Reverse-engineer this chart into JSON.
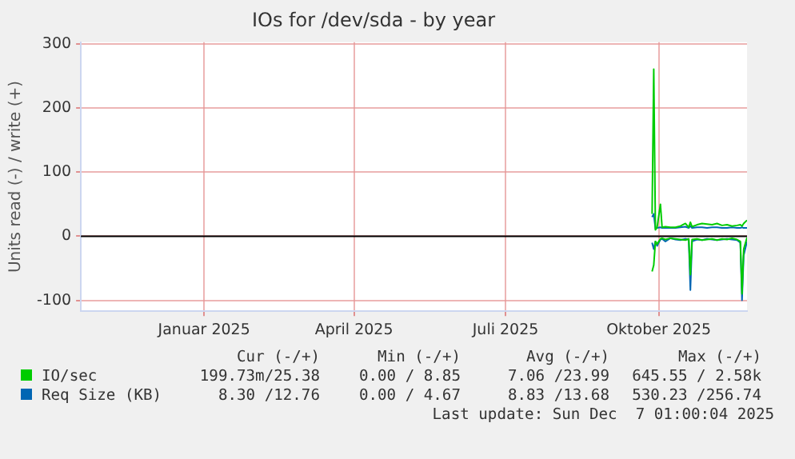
{
  "chart_data": {
    "type": "line",
    "title": "IOs for /dev/sda - by year",
    "ylabel": "Units read (-) / write (+)",
    "x": [
      "2025-10-11",
      "2025-10-12",
      "2025-10-13",
      "2025-10-14",
      "2025-10-16",
      "2025-10-17",
      "2025-10-19",
      "2025-10-22",
      "2025-10-25",
      "2025-10-28",
      "2025-10-31",
      "2025-11-02",
      "2025-11-03",
      "2025-11-04",
      "2025-11-07",
      "2025-11-10",
      "2025-11-13",
      "2025-11-16",
      "2025-11-19",
      "2025-11-22",
      "2025-11-25",
      "2025-11-28",
      "2025-12-01",
      "2025-12-03",
      "2025-12-04",
      "2025-12-05",
      "2025-12-07"
    ],
    "series": [
      {
        "name": "IO/sec",
        "color": "#00cc00",
        "values": [
          35,
          261,
          10,
          14,
          50,
          14,
          15,
          14,
          14,
          16,
          20,
          14,
          22,
          15,
          18,
          20,
          19,
          18,
          20,
          17,
          18,
          16,
          17,
          18,
          16,
          20,
          25
        ]
      },
      {
        "color": "#00cc00",
        "values": [
          -55,
          -45,
          -8,
          -12,
          -4,
          -3,
          -5,
          -3,
          -4,
          -5,
          -6,
          -4,
          -60,
          -5,
          -4,
          -6,
          -5,
          -4,
          -6,
          -4,
          -5,
          -3,
          -5,
          -8,
          -90,
          -20,
          -2
        ]
      },
      {
        "name": "Req Size (KB)",
        "color": "#0066b3",
        "values": [
          30,
          35,
          12,
          13,
          14,
          13,
          13,
          13,
          13,
          14,
          15,
          13,
          16,
          13,
          14,
          14,
          13,
          14,
          14,
          13,
          13,
          14,
          13,
          13,
          14,
          13,
          13
        ]
      },
      {
        "color": "#0066b3",
        "values": [
          -10,
          -20,
          -8,
          -15,
          -5,
          -4,
          -8,
          -3,
          -5,
          -6,
          -4,
          -5,
          -84,
          -8,
          -5,
          -6,
          -4,
          -5,
          -6,
          -5,
          -4,
          -5,
          -6,
          -10,
          -100,
          -30,
          -8
        ]
      }
    ],
    "xlim": [
      "2024-11-02",
      "2025-12-07"
    ],
    "xticks": [
      {
        "value": "2025-01-15",
        "label": "Januar 2025"
      },
      {
        "value": "2025-04-15",
        "label": "April 2025"
      },
      {
        "value": "2025-07-15",
        "label": "Juli 2025"
      },
      {
        "value": "2025-10-15",
        "label": "Oktober 2025"
      }
    ],
    "ylim": [
      -117,
      303
    ],
    "yticks": [
      -100,
      0,
      100,
      200,
      300
    ],
    "ref_lines": [
      {
        "axis": "y",
        "value": 0,
        "color": "#000000"
      }
    ],
    "grid": true,
    "legend": "bottom left",
    "marker": "none",
    "line_style": "solid",
    "annotations": [
      "Cur (-/+)",
      "Min (-/+)",
      "Avg (-/+)",
      "Max (-/+)",
      "199.73m/25.38",
      "0.00 / 8.85",
      "7.06 /23.99",
      "645.55 / 2.58k",
      "8.30 /12.76",
      "0.00 / 4.67",
      "8.83 /13.68",
      "530.23 /256.74",
      "Last update: Sun Dec  7 01:00:04 2025"
    ]
  }
}
